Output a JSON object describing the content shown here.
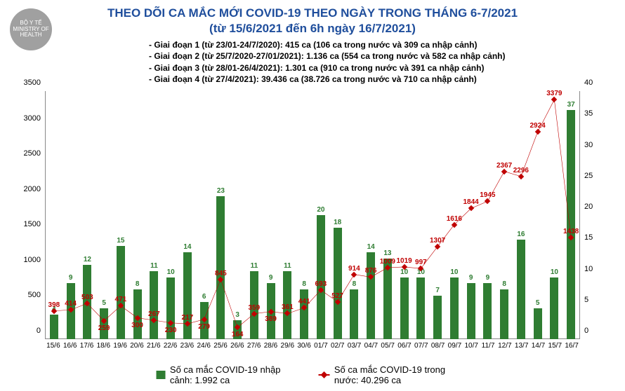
{
  "title": {
    "line1": "THEO DÕI CA MẮC MỚI COVID-19 THEO NGÀY TRONG THÁNG 6-7/2021",
    "line2": "(từ 15/6/2021 đến 6h ngày 16/7/2021)",
    "color": "#1f4e9c",
    "fontsize": 17
  },
  "logo_text": "BỘ Y TẾ\nMINISTRY OF HEALTH",
  "phases": [
    "- Giai đoạn 1 (từ 23/01-24/7/2020): 415 ca (106 ca trong nước và 309 ca nhập cảnh)",
    "- Giai đoạn 2 (từ 25/7/2020-27/01/2021): 1.136 ca (554 ca trong nước và 582 ca nhập cảnh)",
    "- Giai đoạn 3 (từ 28/01-26/4/2021): 1.301 ca (910 ca trong nước và 391 ca nhập cảnh)",
    "- Giai đoạn 4 (từ 27/4/2021): 39.436 ca (38.726 ca trong nước và 710 ca nhập cảnh)"
  ],
  "chart": {
    "type": "bar+line",
    "background_color": "#ffffff",
    "categories": [
      "15/6",
      "16/6",
      "17/6",
      "18/6",
      "19/6",
      "20/6",
      "21/6",
      "22/6",
      "23/6",
      "24/6",
      "25/6",
      "26/6",
      "27/6",
      "28/6",
      "29/6",
      "30/6",
      "01/7",
      "02/7",
      "03/7",
      "04/7",
      "05/7",
      "06/7",
      "07/7",
      "08/7",
      "09/7",
      "10/7",
      "11/7",
      "12/7",
      "13/7",
      "14/7",
      "15/7",
      "16/7"
    ],
    "bar": {
      "values": [
        null,
        4,
        9,
        12,
        5,
        15,
        8,
        11,
        10,
        14,
        6,
        23,
        3,
        11,
        9,
        11,
        8,
        20,
        18,
        8,
        14,
        13,
        10,
        10,
        7,
        10,
        9,
        9,
        8,
        16,
        5,
        10,
        37,
        null
      ],
      "labels_shown_index_start": 1,
      "color": "#2f7d32",
      "width_ratio": 0.5,
      "y_axis": "right",
      "ylim": [
        0,
        40
      ],
      "ytick_step": 5
    },
    "line": {
      "values": [
        398,
        414,
        503,
        259,
        471,
        300,
        267,
        230,
        217,
        279,
        845,
        164,
        359,
        389,
        361,
        441,
        693,
        527,
        914,
        876,
        1009,
        1019,
        997,
        1307,
        1616,
        1844,
        1945,
        2367,
        2296,
        2924,
        3379,
        1438
      ],
      "color": "#c00000",
      "line_width": 2,
      "marker": "diamond",
      "marker_size": 6,
      "y_axis": "left",
      "ylim": [
        0,
        3500
      ],
      "ytick_step": 500
    },
    "label_fontsize": 10,
    "axis_fontsize": 11,
    "grid_color": "#cccccc"
  },
  "legend": {
    "bar": {
      "label": "Số ca mắc COVID-19 nhập cảnh: 1.992 ca",
      "color": "#2f7d32"
    },
    "line": {
      "label": "Số ca mắc COVID-19 trong nước: 40.296 ca",
      "color": "#c00000"
    }
  }
}
